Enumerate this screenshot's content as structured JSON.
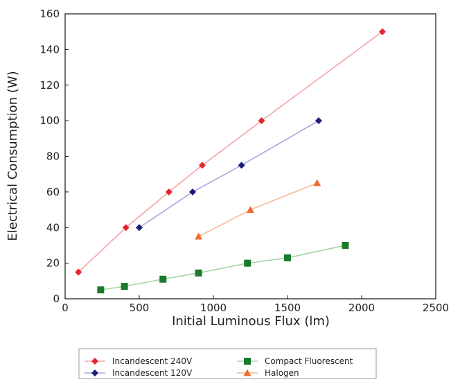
{
  "chart_data": {
    "type": "line",
    "title": "",
    "xlabel": "Initial Luminous Flux (lm)",
    "ylabel": "Electrical Consumption (W)",
    "xlim": [
      0,
      2500
    ],
    "ylim": [
      0,
      160
    ],
    "xticks": [
      "0",
      "500",
      "1000",
      "1500",
      "2000",
      "2500"
    ],
    "yticks": [
      "0",
      "20",
      "40",
      "60",
      "80",
      "100",
      "120",
      "140",
      "160"
    ],
    "grid": false,
    "legend_placement": "bottom",
    "series": [
      {
        "name": "Incandescent 240V",
        "color": "#e8242b",
        "line_color": "#f5a3a8",
        "marker": "diamond",
        "points": [
          [
            90,
            15
          ],
          [
            410,
            40
          ],
          [
            700,
            60
          ],
          [
            925,
            75
          ],
          [
            1325,
            100
          ],
          [
            2140,
            150
          ]
        ]
      },
      {
        "name": "Incandescent 120V",
        "color": "#1c1c7a",
        "line_color": "#a9a9dc",
        "marker": "diamond",
        "points": [
          [
            500,
            40
          ],
          [
            860,
            60
          ],
          [
            1190,
            75
          ],
          [
            1710,
            100
          ]
        ]
      },
      {
        "name": "Compact Fluorescent",
        "color": "#1a7a2c",
        "line_color": "#9ed6a6",
        "marker": "square",
        "points": [
          [
            240,
            5
          ],
          [
            400,
            7
          ],
          [
            660,
            11
          ],
          [
            900,
            14.5
          ],
          [
            1230,
            20
          ],
          [
            1500,
            23
          ],
          [
            1890,
            30
          ]
        ]
      },
      {
        "name": "Halogen",
        "color": "#f26a2b",
        "line_color": "#f8b894",
        "marker": "triangle",
        "points": [
          [
            900,
            35
          ],
          [
            1250,
            50
          ],
          [
            1700,
            65
          ]
        ]
      }
    ]
  }
}
